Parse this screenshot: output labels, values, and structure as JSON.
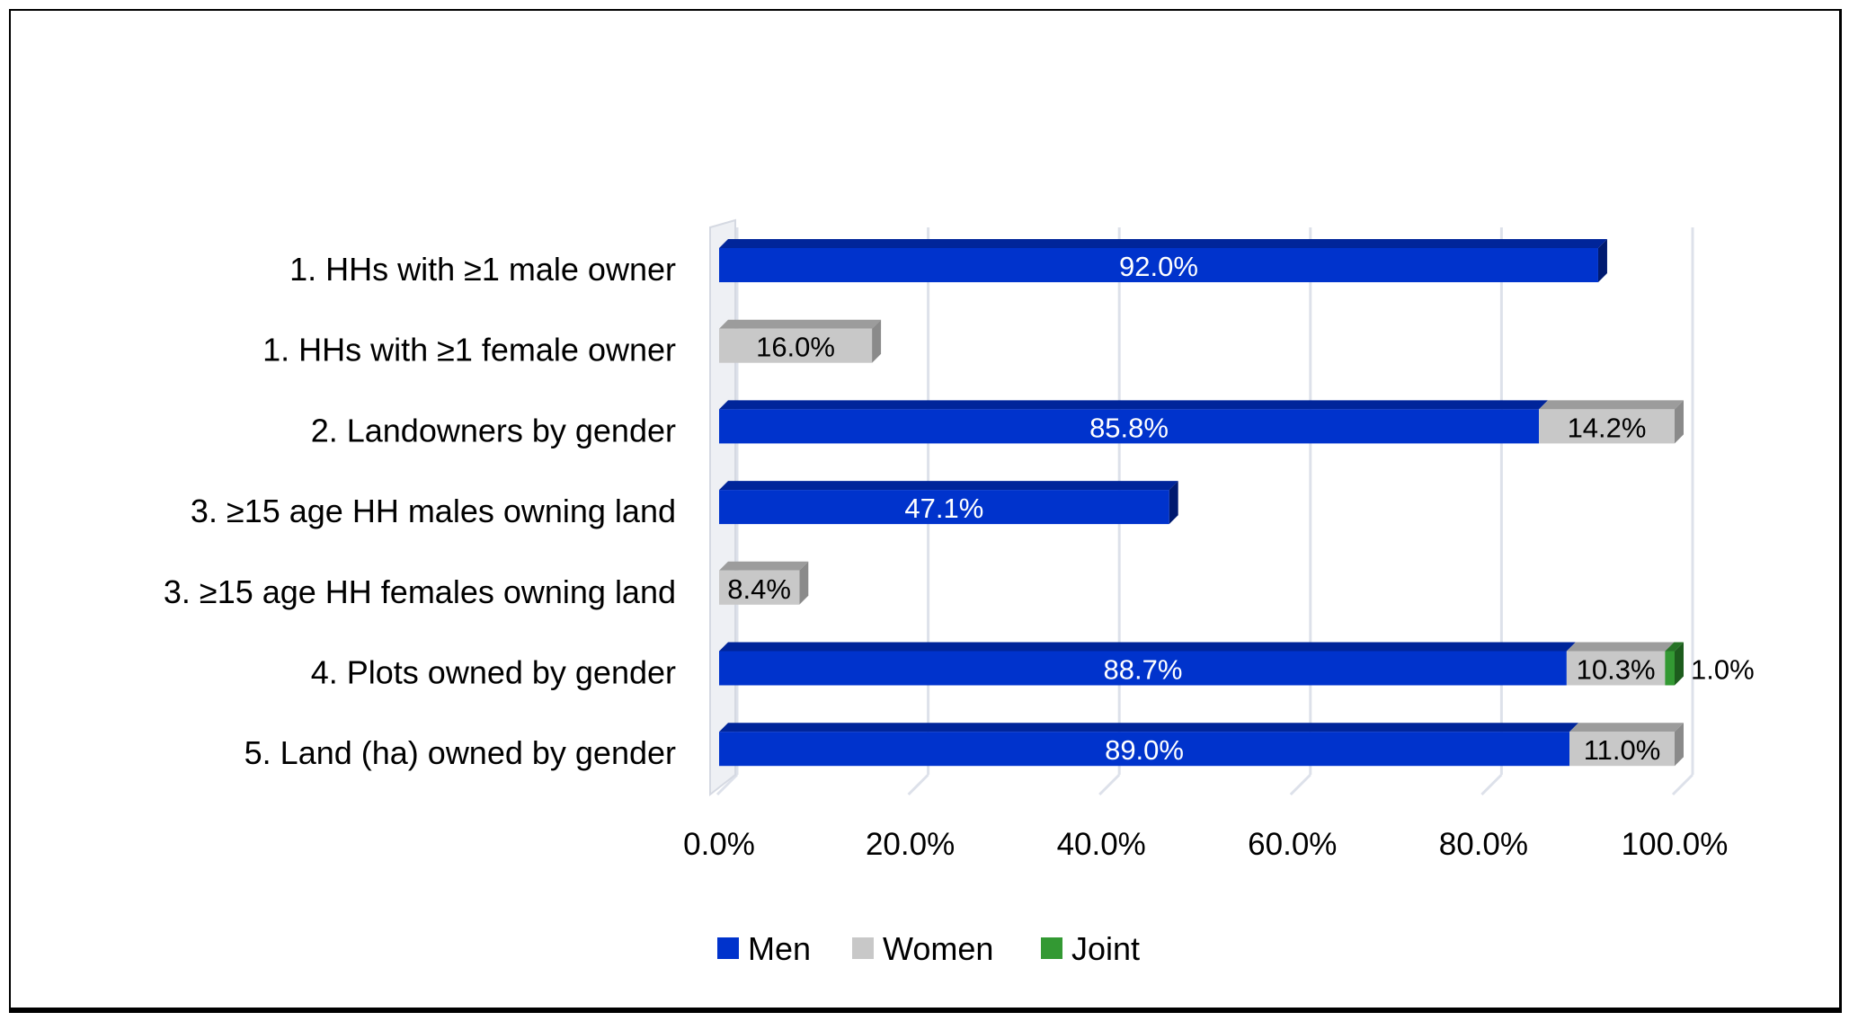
{
  "chart_data": {
    "type": "bar",
    "orientation": "horizontal",
    "stacked": true,
    "style": "3d",
    "title": "",
    "xlabel": "",
    "ylabel": "",
    "xlim": [
      0,
      100
    ],
    "x_ticks": [
      "0.0%",
      "20.0%",
      "40.0%",
      "60.0%",
      "80.0%",
      "100.0%"
    ],
    "grid": true,
    "legend_position": "bottom",
    "categories": [
      "1. HHs with ≥1 male owner",
      "1. HHs with ≥1 female owner",
      "2. Landowners by gender",
      "3. ≥15 age HH males owning land",
      "3. ≥15 age HH females owning land",
      "4. Plots owned by gender",
      "5. Land (ha) owned by gender"
    ],
    "series": [
      {
        "name": "Men",
        "color": "#0033cc",
        "top": "#00259a",
        "side": "#001a70",
        "label_color": "#ffffff",
        "values": [
          92.0,
          null,
          85.8,
          47.1,
          null,
          88.7,
          89.0
        ],
        "labels": [
          "92.0%",
          "",
          "85.8%",
          "47.1%",
          "",
          "88.7%",
          "89.0%"
        ]
      },
      {
        "name": "Women",
        "color": "#c8c8c8",
        "top": "#9c9c9c",
        "side": "#8a8a8a",
        "label_color": "#000000",
        "values": [
          null,
          16.0,
          14.2,
          null,
          8.4,
          10.3,
          11.0
        ],
        "labels": [
          "",
          "16.0%",
          "14.2%",
          "",
          "8.4%",
          "10.3%",
          "11.0%"
        ]
      },
      {
        "name": "Joint",
        "color": "#339933",
        "top": "#267326",
        "side": "#1d5c1d",
        "label_color": "#000000",
        "values": [
          null,
          null,
          null,
          null,
          null,
          1.0,
          null
        ],
        "labels": [
          "",
          "",
          "",
          "",
          "",
          "1.0%",
          ""
        ]
      }
    ]
  }
}
